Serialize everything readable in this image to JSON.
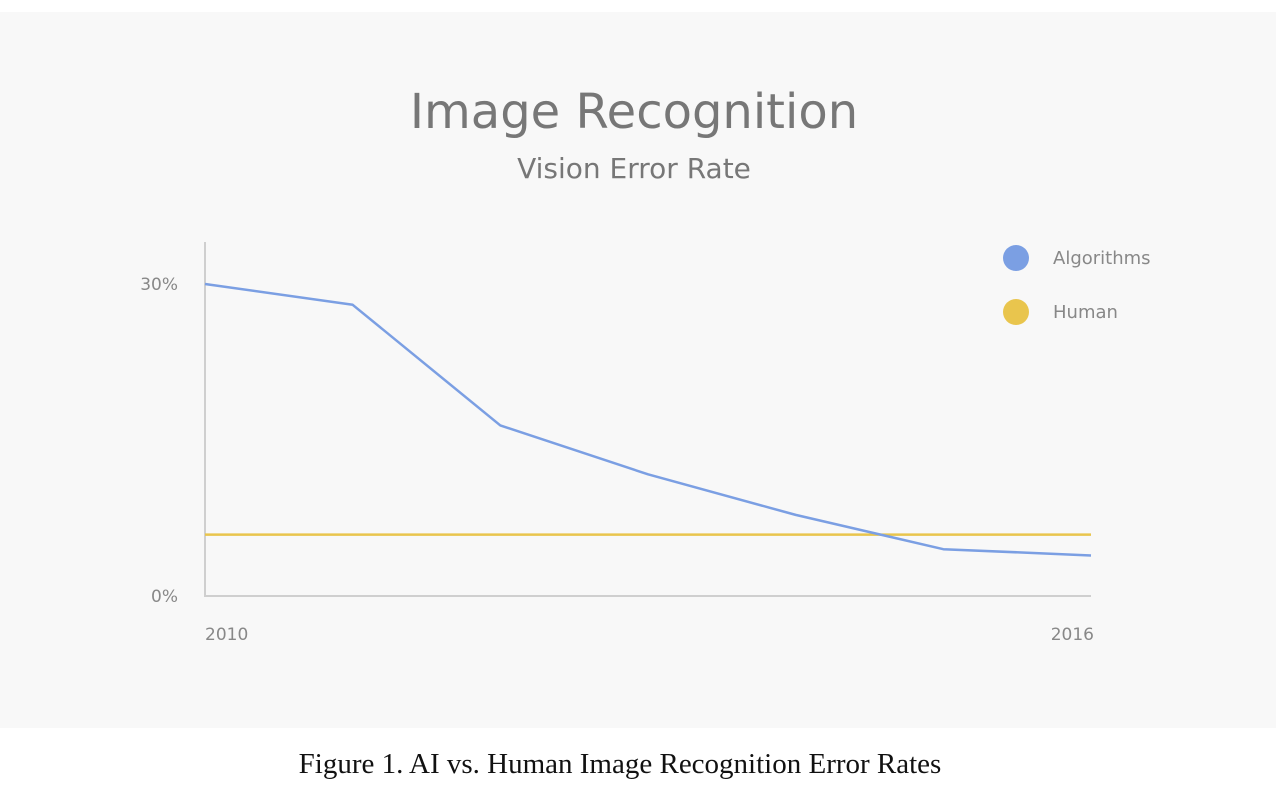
{
  "caption": "Figure 1. AI vs. Human Image Recognition Error Rates",
  "chart_data": {
    "type": "line",
    "title": "Image Recognition",
    "subtitle": "Vision Error Rate",
    "xlabel": "",
    "ylabel": "",
    "x": [
      2010,
      2011,
      2012,
      2013,
      2014,
      2015,
      2016
    ],
    "xlim": [
      2010,
      2016
    ],
    "ylim": [
      0,
      30
    ],
    "x_tick_labels": [
      "2010",
      "2016"
    ],
    "y_tick_labels": [
      "0%",
      "30%"
    ],
    "y_ticks": [
      0,
      30
    ],
    "grid": false,
    "legend_position": "top-right",
    "series": [
      {
        "name": "Algorithms",
        "color": "#7b9fe3",
        "values": [
          30,
          28,
          16.4,
          11.7,
          7.8,
          4.5,
          3.9
        ]
      },
      {
        "name": "Human",
        "color": "#e9c54d",
        "values": [
          5.9,
          5.9,
          5.9,
          5.9,
          5.9,
          5.9,
          5.9
        ]
      }
    ]
  }
}
